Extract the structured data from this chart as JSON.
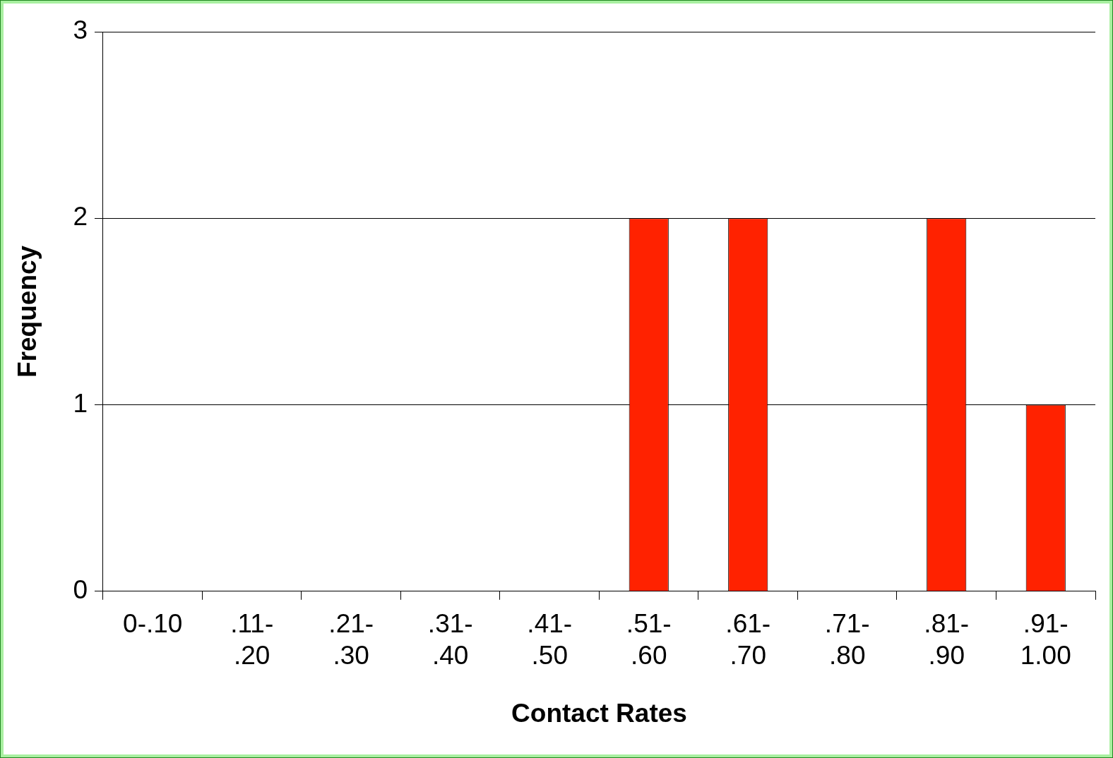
{
  "chart_data": {
    "type": "bar",
    "xlabel": "Contact Rates",
    "ylabel": "Frequency",
    "categories": [
      "0-.10",
      ".11- .20",
      ".21- .30",
      ".31- .40",
      ".41- .50",
      ".51- .60",
      ".61- .70",
      ".71- .80",
      ".81- .90",
      ".91- 1.00"
    ],
    "values": [
      0,
      0,
      0,
      0,
      0,
      2,
      2,
      0,
      2,
      1
    ],
    "color": "#ff2200",
    "ylim": [
      0,
      3
    ],
    "yticks": [
      0,
      1,
      2,
      3
    ],
    "grid": "y",
    "legend": false
  }
}
